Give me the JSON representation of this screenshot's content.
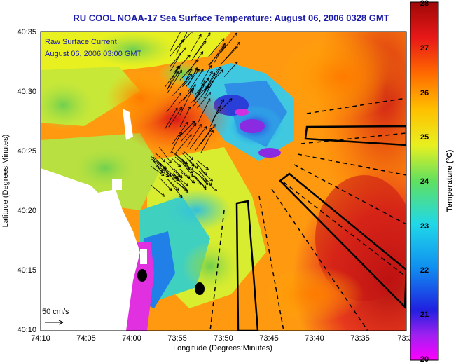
{
  "chart_data": {
    "type": "heatmap",
    "title": "RU COOL  NOAA-17  Sea Surface Temperature:  August 06, 2006 0328 GMT",
    "xlabel": "Longitude (Degrees:Minutes)",
    "ylabel": "Latitude (Degrees:Minutes)",
    "x_ticks": [
      "74:10",
      "74:05",
      "74:00",
      "73:55",
      "73:50",
      "73:45",
      "73:40",
      "73:35",
      "73:3"
    ],
    "y_ticks": [
      "40:35",
      "40:30",
      "40:25",
      "40:20",
      "40:15",
      "40:10"
    ],
    "colorbar": {
      "label": "Temperature (°C)",
      "range": [
        20,
        28
      ],
      "ticks": [
        "28",
        "27",
        "26",
        "25",
        "24",
        "23",
        "22",
        "21",
        "20"
      ]
    },
    "annotations": {
      "current_title": "Raw Surface Current",
      "current_date": "August 06, 2006 03:00 GMT",
      "scale_label": "50 cm/s"
    },
    "colors": {
      "title": "#1a1aa8",
      "land": "#ffffff"
    }
  }
}
